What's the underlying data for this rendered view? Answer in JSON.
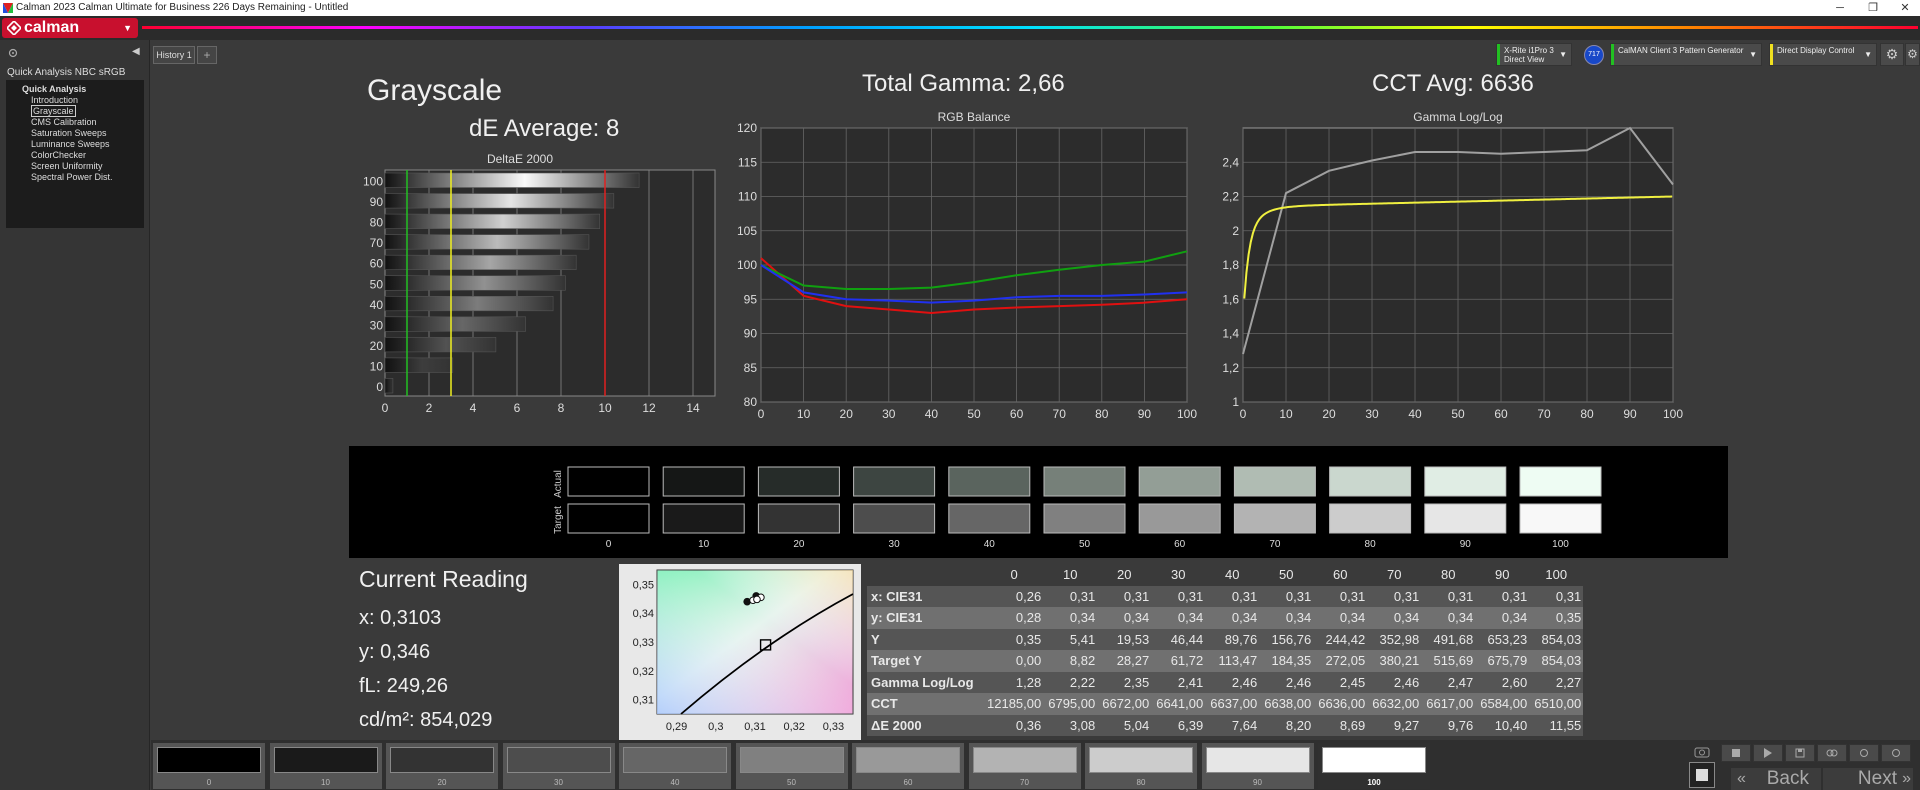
{
  "window": {
    "title": "Calman 2023 Calman Ultimate for Business 226 Days Remaining  - Untitled",
    "minimize": "─",
    "restore": "❐",
    "close": "✕"
  },
  "logo": {
    "text": "calman",
    "dropdown": "▼"
  },
  "sidebar": {
    "title": "Quick Analysis NBC sRGB",
    "collapse": "◀",
    "tree": [
      {
        "label": "Quick Analysis",
        "root": true
      },
      {
        "label": "Introduction"
      },
      {
        "label": "Grayscale",
        "selected": true
      },
      {
        "label": "CMS Calibration"
      },
      {
        "label": "Saturation Sweeps"
      },
      {
        "label": "Luminance Sweeps"
      },
      {
        "label": "ColorChecker"
      },
      {
        "label": "Screen Uniformity"
      },
      {
        "label": "Spectral Power Dist."
      }
    ]
  },
  "tabs": {
    "history": "History 1",
    "add": "+"
  },
  "devices": {
    "meter": {
      "line1": "X-Rite i1Pro 3",
      "line2": "Direct View",
      "color": "#22c022"
    },
    "badge": "717",
    "pattern": {
      "line1": "CalMAN Client 3 Pattern Generator",
      "color": "#22c022"
    },
    "display": {
      "line1": "Direct Display Control",
      "color": "#f0e020"
    },
    "dropdown": "▼",
    "gear": "⚙"
  },
  "headings": {
    "grayscale": "Grayscale",
    "de_average": "dE Average: 8",
    "total_gamma": "Total Gamma: 2,66",
    "cct_avg": "CCT Avg: 6636"
  },
  "deltae_chart": {
    "title": "DeltaE 2000",
    "categories": [
      "100",
      "90",
      "80",
      "70",
      "60",
      "50",
      "40",
      "30",
      "20",
      "10",
      "0"
    ],
    "values": [
      11.55,
      10.4,
      9.76,
      9.27,
      8.69,
      8.2,
      7.64,
      6.39,
      5.04,
      3.08,
      0.36
    ],
    "xticks": [
      "0",
      "2",
      "4",
      "6",
      "8",
      "10",
      "12",
      "14"
    ],
    "xlim": [
      0,
      15
    ],
    "thresholds": [
      {
        "value": 1,
        "color": "#22c022"
      },
      {
        "value": 3,
        "color": "#f0f020"
      },
      {
        "value": 10,
        "color": "#e02020"
      }
    ]
  },
  "chart_data": [
    {
      "type": "line",
      "title": "RGB Balance",
      "x": [
        0,
        10,
        20,
        30,
        40,
        50,
        60,
        70,
        80,
        90,
        100
      ],
      "xticks": [
        "0",
        "10",
        "20",
        "30",
        "40",
        "50",
        "60",
        "70",
        "80",
        "90",
        "100"
      ],
      "yticks": [
        "80",
        "85",
        "90",
        "95",
        "100",
        "105",
        "110",
        "115",
        "120"
      ],
      "ylim": [
        80,
        120
      ],
      "xlim": [
        0,
        100
      ],
      "grid": true,
      "series": [
        {
          "color": "#e01010",
          "values": [
            101,
            95.5,
            94,
            93.5,
            93,
            93.5,
            93.8,
            94,
            94.2,
            94.5,
            95
          ]
        },
        {
          "color": "#10a010",
          "values": [
            100,
            97,
            96.5,
            96.5,
            96.7,
            97.5,
            98.5,
            99.3,
            100,
            100.5,
            102
          ]
        },
        {
          "color": "#2030f0",
          "values": [
            100,
            96,
            95,
            94.8,
            94.5,
            94.8,
            95.3,
            95.5,
            95.5,
            95.7,
            96
          ]
        }
      ]
    },
    {
      "type": "line",
      "title": "Gamma Log/Log",
      "x": [
        0,
        10,
        20,
        30,
        40,
        50,
        60,
        70,
        80,
        90,
        100
      ],
      "xticks": [
        "0",
        "10",
        "20",
        "30",
        "40",
        "50",
        "60",
        "70",
        "80",
        "90",
        "100"
      ],
      "yticks": [
        "1",
        "1,2",
        "1,4",
        "1,6",
        "1,8",
        "2",
        "2,2",
        "2,4"
      ],
      "ylim": [
        1,
        2.6
      ],
      "xlim": [
        0,
        100
      ],
      "grid": true,
      "series": [
        {
          "color": "#a0a0a0",
          "values": [
            1.28,
            2.22,
            2.35,
            2.41,
            2.46,
            2.46,
            2.45,
            2.46,
            2.47,
            2.6,
            2.27
          ]
        },
        {
          "color": "#f0f040",
          "target_gamma": 2.2
        }
      ]
    }
  ],
  "swatches": {
    "row_labels": {
      "actual": "Actual",
      "target": "Target"
    },
    "levels": [
      "0",
      "10",
      "20",
      "30",
      "40",
      "50",
      "60",
      "70",
      "80",
      "90",
      "100"
    ],
    "actual_colors": [
      "#000000",
      "#151716",
      "#262c29",
      "#3d4541",
      "#5a645e",
      "#768079",
      "#939e96",
      "#b0bcb3",
      "#cad7ce",
      "#e0ede4",
      "#eefcf3"
    ],
    "target_colors": [
      "#000000",
      "#1a1a1a",
      "#333333",
      "#4d4d4d",
      "#666666",
      "#808080",
      "#999999",
      "#b3b3b3",
      "#cccccc",
      "#e6e6e6",
      "#f8f8f8"
    ]
  },
  "reading": {
    "title": "Current Reading",
    "x": "x: 0,3103",
    "y": "y: 0,346",
    "fl": "fL: 249,26",
    "cdm2": "cd/m²: 854,029"
  },
  "cie": {
    "xticks": [
      "0,29",
      "0,3",
      "0,31",
      "0,32",
      "0,33"
    ],
    "yticks": [
      "0,35",
      "0,34",
      "0,33",
      "0,32",
      "0,31"
    ],
    "xlim": [
      0.285,
      0.335
    ],
    "ylim": [
      0.305,
      0.355
    ],
    "target": {
      "x": 0.3127,
      "y": 0.329
    },
    "points": [
      {
        "x": 0.3103,
        "y": 0.346,
        "filled": true
      },
      {
        "x": 0.308,
        "y": 0.344,
        "filled": true
      },
      {
        "x": 0.3095,
        "y": 0.3445,
        "filled": false
      },
      {
        "x": 0.3115,
        "y": 0.3455,
        "filled": false
      },
      {
        "x": 0.3105,
        "y": 0.3448,
        "filled": false
      }
    ]
  },
  "table": {
    "columns": [
      "0",
      "10",
      "20",
      "30",
      "40",
      "50",
      "60",
      "70",
      "80",
      "90",
      "100"
    ],
    "rows": [
      {
        "label": "x: CIE31",
        "values": [
          "0,26",
          "0,31",
          "0,31",
          "0,31",
          "0,31",
          "0,31",
          "0,31",
          "0,31",
          "0,31",
          "0,31",
          "0,31"
        ]
      },
      {
        "label": "y: CIE31",
        "values": [
          "0,28",
          "0,34",
          "0,34",
          "0,34",
          "0,34",
          "0,34",
          "0,34",
          "0,34",
          "0,34",
          "0,34",
          "0,35"
        ]
      },
      {
        "label": "Y",
        "values": [
          "0,35",
          "5,41",
          "19,53",
          "46,44",
          "89,76",
          "156,76",
          "244,42",
          "352,98",
          "491,68",
          "653,23",
          "854,03"
        ]
      },
      {
        "label": "Target Y",
        "values": [
          "0,00",
          "8,82",
          "28,27",
          "61,72",
          "113,47",
          "184,35",
          "272,05",
          "380,21",
          "515,69",
          "675,79",
          "854,03"
        ]
      },
      {
        "label": "Gamma Log/Log",
        "values": [
          "1,28",
          "2,22",
          "2,35",
          "2,41",
          "2,46",
          "2,46",
          "2,45",
          "2,46",
          "2,47",
          "2,60",
          "2,27"
        ]
      },
      {
        "label": "CCT",
        "values": [
          "12185,00",
          "6795,00",
          "6672,00",
          "6641,00",
          "6637,00",
          "6638,00",
          "6636,00",
          "6632,00",
          "6617,00",
          "6584,00",
          "6510,00"
        ]
      },
      {
        "label": "ΔE 2000",
        "values": [
          "0,36",
          "3,08",
          "5,04",
          "6,39",
          "7,64",
          "8,20",
          "8,69",
          "9,27",
          "9,76",
          "10,40",
          "11,55"
        ]
      }
    ]
  },
  "bottom_tiles": {
    "levels": [
      "0",
      "10",
      "20",
      "30",
      "40",
      "50",
      "60",
      "70",
      "80",
      "90",
      "100"
    ],
    "colors": [
      "#000000",
      "#1a1a1a",
      "#333333",
      "#4d4d4d",
      "#666666",
      "#808080",
      "#999999",
      "#b3b3b3",
      "#cccccc",
      "#e6e6e6",
      "#ffffff"
    ],
    "selected": "100"
  },
  "nav": {
    "back": "Back",
    "next": "Next",
    "back_arrow": "«",
    "next_arrow": "»"
  }
}
